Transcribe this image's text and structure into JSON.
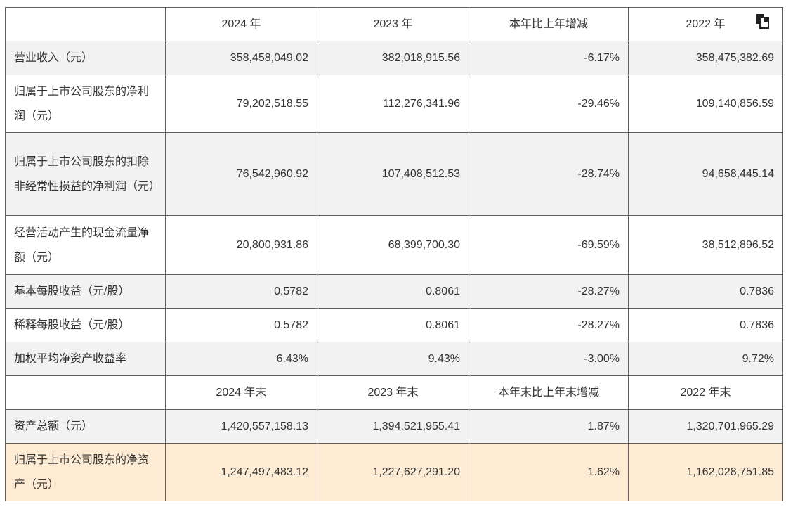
{
  "header": [
    "",
    "2024 年",
    "2023 年",
    "本年比上年增减",
    "2022 年"
  ],
  "header2": [
    "",
    "2024 年末",
    "2023 年末",
    "本年末比上年末增减",
    "2022 年末"
  ],
  "rows": [
    {
      "label": "营业收入（元）",
      "v2024": "358,458,049.02",
      "v2023": "382,018,915.56",
      "change": "-6.17%",
      "v2022": "358,475,382.69"
    },
    {
      "label": "归属于上市公司股东的净利润（元）",
      "v2024": "79,202,518.55",
      "v2023": "112,276,341.96",
      "change": "-29.46%",
      "v2022": "109,140,856.59"
    },
    {
      "label": "归属于上市公司股东的扣除非经常性损益的净利润（元）",
      "v2024": "76,542,960.92",
      "v2023": "107,408,512.53",
      "change": "-28.74%",
      "v2022": "94,658,445.14"
    },
    {
      "label": "经营活动产生的现金流量净额（元）",
      "v2024": "20,800,931.86",
      "v2023": "68,399,700.30",
      "change": "-69.59%",
      "v2022": "38,512,896.52"
    },
    {
      "label": "基本每股收益（元/股）",
      "v2024": "0.5782",
      "v2023": "0.8061",
      "change": "-28.27%",
      "v2022": "0.7836"
    },
    {
      "label": "稀释每股收益（元/股）",
      "v2024": "0.5782",
      "v2023": "0.8061",
      "change": "-28.27%",
      "v2022": "0.7836"
    },
    {
      "label": "加权平均净资产收益率",
      "v2024": "6.43%",
      "v2023": "9.43%",
      "change": "-3.00%",
      "v2022": "9.72%"
    }
  ],
  "rows2": [
    {
      "label": "资产总额（元）",
      "v2024": "1,420,557,158.13",
      "v2023": "1,394,521,955.41",
      "change": "1.87%",
      "v2022": "1,320,701,965.29"
    },
    {
      "label": "归属于上市公司股东的净资产（元）",
      "v2024": "1,247,497,483.12",
      "v2023": "1,227,627,291.20",
      "change": "1.62%",
      "v2022": "1,162,028,751.85"
    }
  ],
  "icons": {
    "copy": "copy-icon"
  },
  "colors": {
    "border": "#5f5f5f",
    "row_alt": "#f2f2f2",
    "row_highlight": "#fdebd3"
  }
}
